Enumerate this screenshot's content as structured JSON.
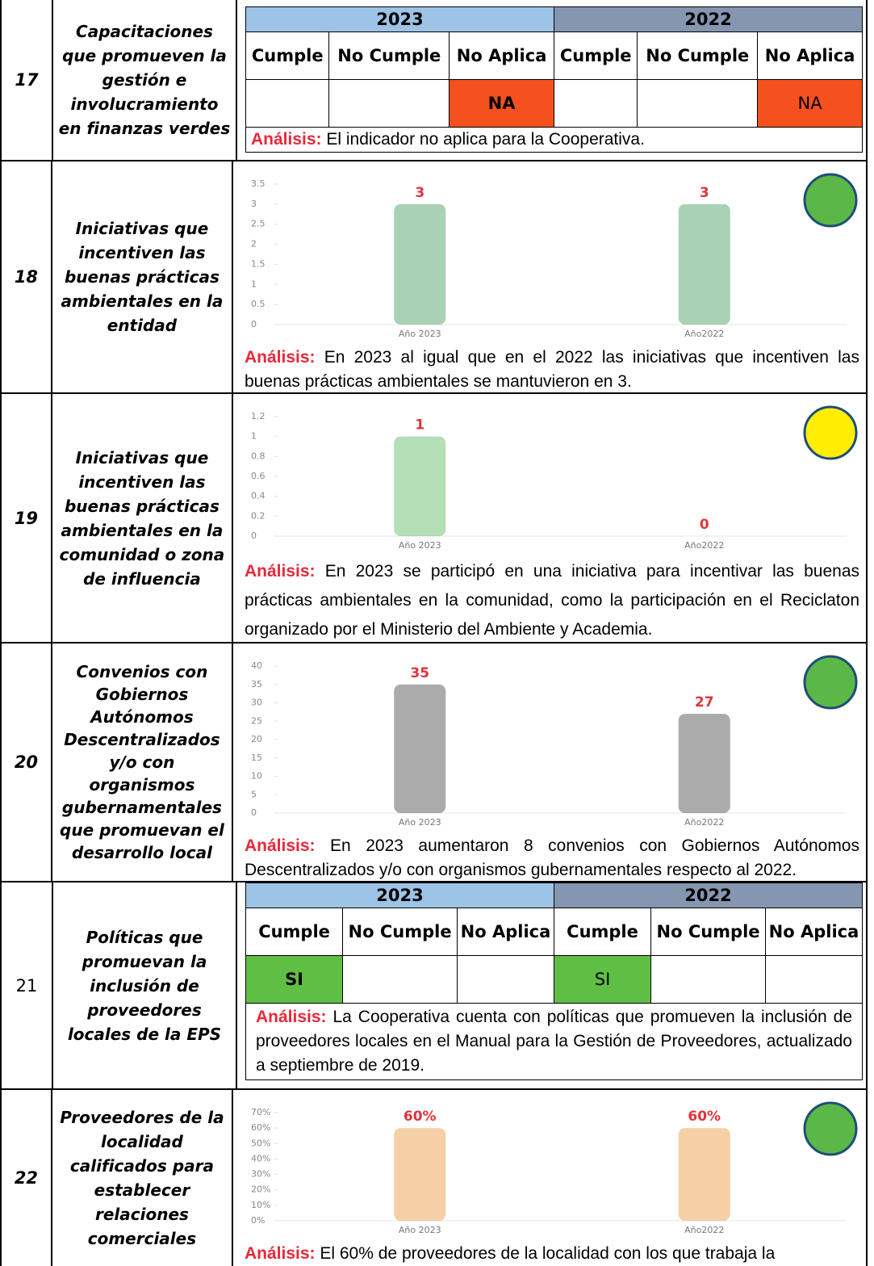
{
  "rows": [
    {
      "number": "17",
      "indicator": "Capacitaciones que promueven la gestión e involucramiento en finanzas verdes",
      "table": {
        "years": [
          "2023",
          "2022"
        ],
        "headers": [
          "Cumple",
          "No Cumple",
          "No Aplica",
          "Cumple",
          "No Cumple",
          "No Aplica"
        ],
        "cells": [
          null,
          null,
          "NA",
          null,
          null,
          "NA"
        ]
      },
      "analysis_label": "Análisis:",
      "analysis": "El indicador no aplica para la Cooperativa."
    },
    {
      "number": "18",
      "indicator": "Iniciativas que incentiven las buenas prácticas ambientales en la entidad",
      "chart": {
        "type": "bar",
        "categories": [
          "Año 2023",
          "Año2022"
        ],
        "values": [
          3,
          3
        ],
        "color": "#3e9a5a",
        "ylim": [
          0,
          3.5
        ],
        "yticks": [
          0,
          0.5,
          1,
          1.5,
          2,
          2.5,
          3,
          3.5
        ],
        "status_color": "#5bb846"
      },
      "analysis_label": "Análisis:",
      "analysis": "En 2023 al igual que en el 2022 las iniciativas que incentiven las buenas prácticas ambientales se mantuvieron en 3."
    },
    {
      "number": "19",
      "indicator": "Iniciativas que incentiven las buenas prácticas ambientales en la comunidad o zona de influencia",
      "chart": {
        "type": "bar",
        "categories": [
          "Año 2023",
          "Año2022"
        ],
        "values": [
          1,
          0
        ],
        "color": "#5cb85c",
        "ylim": [
          0,
          1.2
        ],
        "yticks": [
          0,
          0.2,
          0.4,
          0.6,
          0.8,
          1,
          1.2
        ],
        "status_color": "#ffee00"
      },
      "analysis_label": "Análisis:",
      "analysis": "En 2023 se participó en una iniciativa para incentivar las buenas prácticas ambientales en la comunidad, como la participación en el Reciclaton organizado por el Ministerio del Ambiente y Academia."
    },
    {
      "number": "20",
      "indicator": "Convenios con Gobiernos Autónomos Descentralizados y/o con organismos gubernamentales que promuevan el desarrollo local",
      "chart": {
        "type": "bar",
        "categories": [
          "Año 2023",
          "Año2022"
        ],
        "values": [
          35,
          27
        ],
        "color": "#444444",
        "ylim": [
          0,
          40
        ],
        "yticks": [
          0,
          5,
          10,
          15,
          20,
          25,
          30,
          35,
          40
        ],
        "status_color": "#5bb846"
      },
      "analysis_label": "Análisis:",
      "analysis": "En 2023 aumentaron 8 convenios con Gobiernos Autónomos Descentralizados y/o con organismos gubernamentales respecto al 2022."
    },
    {
      "number": "21",
      "indicator": "Políticas que promuevan la inclusión de proveedores locales de la EPS",
      "table": {
        "years": [
          "2023",
          "2022"
        ],
        "headers": [
          "Cumple",
          "No Cumple",
          "No Aplica",
          "Cumple",
          "No Cumple",
          "No Aplica"
        ],
        "cells": [
          "SI",
          null,
          null,
          "SI",
          null,
          null
        ]
      },
      "analysis_label": "Análisis:",
      "analysis": "La Cooperativa cuenta con políticas que promueven la inclusión de proveedores locales en el Manual para la Gestión de Proveedores, actualizado a septiembre de 2019."
    },
    {
      "number": "22",
      "indicator": "Proveedores de la localidad calificados para establecer relaciones comerciales",
      "chart": {
        "type": "bar",
        "categories": [
          "Año 2023",
          "Año2022"
        ],
        "values": [
          60,
          60
        ],
        "value_labels": [
          "60%",
          "60%"
        ],
        "color": "#e8963a",
        "ylim": [
          0,
          70
        ],
        "yticks": [
          {
            "value": 0,
            "label": "0%"
          },
          {
            "value": 10,
            "label": "10%"
          },
          {
            "value": 20,
            "label": "20%"
          },
          {
            "value": 30,
            "label": "30%"
          },
          {
            "value": 40,
            "label": "40%"
          },
          {
            "value": 50,
            "label": "50%"
          },
          {
            "value": 60,
            "label": "60%"
          },
          {
            "value": 70,
            "label": "70%"
          }
        ],
        "status_color": "#5bb846"
      },
      "analysis_label": "Análisis:",
      "analysis": "El 60% de proveedores de la localidad con los que trabaja la"
    }
  ]
}
